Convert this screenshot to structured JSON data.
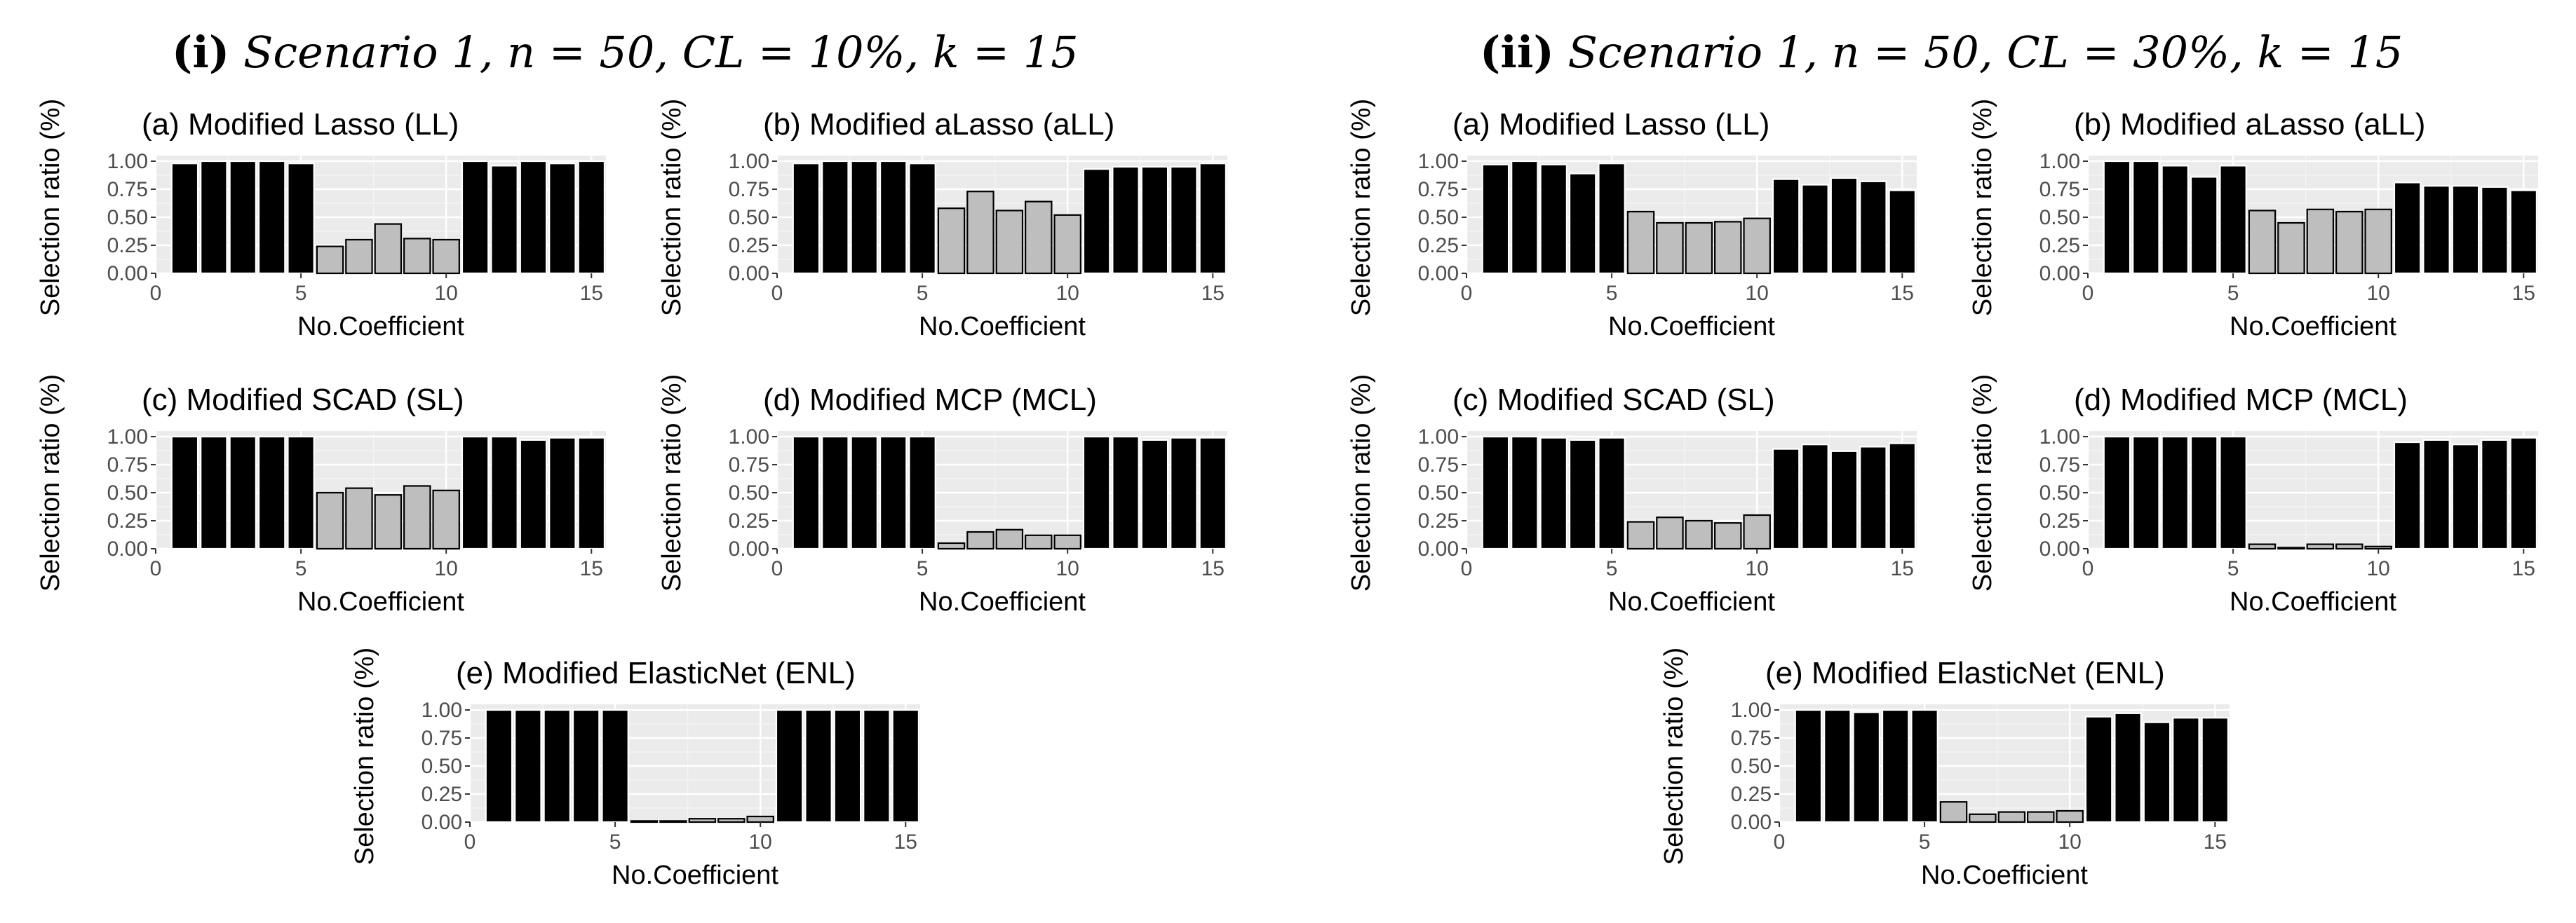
{
  "figure": {
    "scenarios": [
      {
        "numeral": "(i)",
        "text": "Scenario 1, n = 50, CL = 10%, k = 15"
      },
      {
        "numeral": "(ii)",
        "text": "Scenario 1, n = 50, CL = 30%, k = 15"
      }
    ]
  },
  "chart_data": [
    {
      "type": "bar",
      "scenario": "(i)",
      "title": "(a) Modified Lasso (LL)",
      "xlabel": "No.Coefficient",
      "ylabel": "Selection ratio (%)",
      "xlim": [
        0,
        15.5
      ],
      "ylim": [
        0,
        1.05
      ],
      "xticks": [
        0,
        5,
        10,
        15
      ],
      "yticks": [
        0.0,
        0.25,
        0.5,
        0.75,
        1.0
      ],
      "ytick_labels": [
        "0.00",
        "0.25",
        "0.50",
        "0.75",
        "1.00"
      ],
      "x": [
        1,
        2,
        3,
        4,
        5,
        6,
        7,
        8,
        9,
        10,
        11,
        12,
        13,
        14,
        15
      ],
      "values": [
        0.98,
        1.0,
        1.0,
        1.0,
        0.98,
        0.24,
        0.3,
        0.44,
        0.31,
        0.3,
        1.0,
        0.96,
        1.0,
        0.98,
        1.0
      ],
      "fills": [
        "#000000",
        "#000000",
        "#000000",
        "#000000",
        "#000000",
        "#bebebe",
        "#bebebe",
        "#bebebe",
        "#bebebe",
        "#bebebe",
        "#000000",
        "#000000",
        "#000000",
        "#000000",
        "#000000"
      ],
      "grid": true
    },
    {
      "type": "bar",
      "scenario": "(i)",
      "title": "(b) Modified aLasso (aLL)",
      "xlabel": "No.Coefficient",
      "ylabel": "Selection ratio (%)",
      "xlim": [
        0,
        15.5
      ],
      "ylim": [
        0,
        1.05
      ],
      "xticks": [
        0,
        5,
        10,
        15
      ],
      "yticks": [
        0.0,
        0.25,
        0.5,
        0.75,
        1.0
      ],
      "ytick_labels": [
        "0.00",
        "0.25",
        "0.50",
        "0.75",
        "1.00"
      ],
      "x": [
        1,
        2,
        3,
        4,
        5,
        6,
        7,
        8,
        9,
        10,
        11,
        12,
        13,
        14,
        15
      ],
      "values": [
        0.98,
        1.0,
        1.0,
        1.0,
        0.98,
        0.58,
        0.73,
        0.56,
        0.64,
        0.52,
        0.93,
        0.95,
        0.95,
        0.95,
        0.98
      ],
      "fills": [
        "#000000",
        "#000000",
        "#000000",
        "#000000",
        "#000000",
        "#bebebe",
        "#bebebe",
        "#bebebe",
        "#bebebe",
        "#bebebe",
        "#000000",
        "#000000",
        "#000000",
        "#000000",
        "#000000"
      ],
      "grid": true
    },
    {
      "type": "bar",
      "scenario": "(i)",
      "title": "(c) Modified SCAD (SL)",
      "xlabel": "No.Coefficient",
      "ylabel": "Selection ratio (%)",
      "xlim": [
        0,
        15.5
      ],
      "ylim": [
        0,
        1.05
      ],
      "xticks": [
        0,
        5,
        10,
        15
      ],
      "yticks": [
        0.0,
        0.25,
        0.5,
        0.75,
        1.0
      ],
      "ytick_labels": [
        "0.00",
        "0.25",
        "0.50",
        "0.75",
        "1.00"
      ],
      "x": [
        1,
        2,
        3,
        4,
        5,
        6,
        7,
        8,
        9,
        10,
        11,
        12,
        13,
        14,
        15
      ],
      "values": [
        1.0,
        1.0,
        1.0,
        1.0,
        1.0,
        0.5,
        0.54,
        0.48,
        0.56,
        0.52,
        1.0,
        1.0,
        0.97,
        0.99,
        0.99
      ],
      "fills": [
        "#000000",
        "#000000",
        "#000000",
        "#000000",
        "#000000",
        "#bebebe",
        "#bebebe",
        "#bebebe",
        "#bebebe",
        "#bebebe",
        "#000000",
        "#000000",
        "#000000",
        "#000000",
        "#000000"
      ],
      "grid": true
    },
    {
      "type": "bar",
      "scenario": "(i)",
      "title": "(d) Modified MCP (MCL)",
      "xlabel": "No.Coefficient",
      "ylabel": "Selection ratio (%)",
      "xlim": [
        0,
        15.5
      ],
      "ylim": [
        0,
        1.05
      ],
      "xticks": [
        0,
        5,
        10,
        15
      ],
      "yticks": [
        0.0,
        0.25,
        0.5,
        0.75,
        1.0
      ],
      "ytick_labels": [
        "0.00",
        "0.25",
        "0.50",
        "0.75",
        "1.00"
      ],
      "x": [
        1,
        2,
        3,
        4,
        5,
        6,
        7,
        8,
        9,
        10,
        11,
        12,
        13,
        14,
        15
      ],
      "values": [
        1.0,
        1.0,
        1.0,
        1.0,
        1.0,
        0.05,
        0.15,
        0.17,
        0.12,
        0.12,
        1.0,
        1.0,
        0.97,
        0.99,
        0.99
      ],
      "fills": [
        "#000000",
        "#000000",
        "#000000",
        "#000000",
        "#000000",
        "#bebebe",
        "#bebebe",
        "#bebebe",
        "#bebebe",
        "#bebebe",
        "#000000",
        "#000000",
        "#000000",
        "#000000",
        "#000000"
      ],
      "grid": true
    },
    {
      "type": "bar",
      "scenario": "(i)",
      "title": "(e) Modified ElasticNet (ENL)",
      "xlabel": "No.Coefficient",
      "ylabel": "Selection ratio (%)",
      "xlim": [
        0,
        15.5
      ],
      "ylim": [
        0,
        1.05
      ],
      "xticks": [
        0,
        5,
        10,
        15
      ],
      "yticks": [
        0.0,
        0.25,
        0.5,
        0.75,
        1.0
      ],
      "ytick_labels": [
        "0.00",
        "0.25",
        "0.50",
        "0.75",
        "1.00"
      ],
      "x": [
        1,
        2,
        3,
        4,
        5,
        6,
        7,
        8,
        9,
        10,
        11,
        12,
        13,
        14,
        15
      ],
      "values": [
        1.0,
        1.0,
        1.0,
        1.0,
        1.0,
        0.01,
        0.01,
        0.03,
        0.03,
        0.05,
        1.0,
        1.0,
        1.0,
        1.0,
        1.0
      ],
      "fills": [
        "#000000",
        "#000000",
        "#000000",
        "#000000",
        "#000000",
        "#bebebe",
        "#bebebe",
        "#bebebe",
        "#bebebe",
        "#bebebe",
        "#000000",
        "#000000",
        "#000000",
        "#000000",
        "#000000"
      ],
      "grid": true
    },
    {
      "type": "bar",
      "scenario": "(ii)",
      "title": "(a) Modified Lasso (LL)",
      "xlabel": "No.Coefficient",
      "ylabel": "Selection ratio (%)",
      "xlim": [
        0,
        15.5
      ],
      "ylim": [
        0,
        1.05
      ],
      "xticks": [
        0,
        5,
        10,
        15
      ],
      "yticks": [
        0.0,
        0.25,
        0.5,
        0.75,
        1.0
      ],
      "ytick_labels": [
        "0.00",
        "0.25",
        "0.50",
        "0.75",
        "1.00"
      ],
      "x": [
        1,
        2,
        3,
        4,
        5,
        6,
        7,
        8,
        9,
        10,
        11,
        12,
        13,
        14,
        15
      ],
      "values": [
        0.97,
        1.0,
        0.97,
        0.89,
        0.98,
        0.55,
        0.45,
        0.45,
        0.46,
        0.49,
        0.84,
        0.79,
        0.85,
        0.82,
        0.74
      ],
      "fills": [
        "#000000",
        "#000000",
        "#000000",
        "#000000",
        "#000000",
        "#bebebe",
        "#bebebe",
        "#bebebe",
        "#bebebe",
        "#bebebe",
        "#000000",
        "#000000",
        "#000000",
        "#000000",
        "#000000"
      ],
      "grid": true
    },
    {
      "type": "bar",
      "scenario": "(ii)",
      "title": "(b) Modified aLasso (aLL)",
      "xlabel": "No.Coefficient",
      "ylabel": "Selection ratio (%)",
      "xlim": [
        0,
        15.5
      ],
      "ylim": [
        0,
        1.05
      ],
      "xticks": [
        0,
        5,
        10,
        15
      ],
      "yticks": [
        0.0,
        0.25,
        0.5,
        0.75,
        1.0
      ],
      "ytick_labels": [
        "0.00",
        "0.25",
        "0.50",
        "0.75",
        "1.00"
      ],
      "x": [
        1,
        2,
        3,
        4,
        5,
        6,
        7,
        8,
        9,
        10,
        11,
        12,
        13,
        14,
        15
      ],
      "values": [
        1.0,
        1.0,
        0.96,
        0.86,
        0.96,
        0.56,
        0.45,
        0.57,
        0.55,
        0.57,
        0.81,
        0.78,
        0.78,
        0.77,
        0.74
      ],
      "fills": [
        "#000000",
        "#000000",
        "#000000",
        "#000000",
        "#000000",
        "#bebebe",
        "#bebebe",
        "#bebebe",
        "#bebebe",
        "#bebebe",
        "#000000",
        "#000000",
        "#000000",
        "#000000",
        "#000000"
      ],
      "grid": true
    },
    {
      "type": "bar",
      "scenario": "(ii)",
      "title": "(c) Modified SCAD (SL)",
      "xlabel": "No.Coefficient",
      "ylabel": "Selection ratio (%)",
      "xlim": [
        0,
        15.5
      ],
      "ylim": [
        0,
        1.05
      ],
      "xticks": [
        0,
        5,
        10,
        15
      ],
      "yticks": [
        0.0,
        0.25,
        0.5,
        0.75,
        1.0
      ],
      "ytick_labels": [
        "0.00",
        "0.25",
        "0.50",
        "0.75",
        "1.00"
      ],
      "x": [
        1,
        2,
        3,
        4,
        5,
        6,
        7,
        8,
        9,
        10,
        11,
        12,
        13,
        14,
        15
      ],
      "values": [
        1.0,
        1.0,
        0.99,
        0.97,
        0.99,
        0.24,
        0.28,
        0.25,
        0.23,
        0.3,
        0.89,
        0.93,
        0.87,
        0.91,
        0.94
      ],
      "fills": [
        "#000000",
        "#000000",
        "#000000",
        "#000000",
        "#000000",
        "#bebebe",
        "#bebebe",
        "#bebebe",
        "#bebebe",
        "#bebebe",
        "#000000",
        "#000000",
        "#000000",
        "#000000",
        "#000000"
      ],
      "grid": true
    },
    {
      "type": "bar",
      "scenario": "(ii)",
      "title": "(d) Modified MCP (MCL)",
      "xlabel": "No.Coefficient",
      "ylabel": "Selection ratio (%)",
      "xlim": [
        0,
        15.5
      ],
      "ylim": [
        0,
        1.05
      ],
      "xticks": [
        0,
        5,
        10,
        15
      ],
      "yticks": [
        0.0,
        0.25,
        0.5,
        0.75,
        1.0
      ],
      "ytick_labels": [
        "0.00",
        "0.25",
        "0.50",
        "0.75",
        "1.00"
      ],
      "x": [
        1,
        2,
        3,
        4,
        5,
        6,
        7,
        8,
        9,
        10,
        11,
        12,
        13,
        14,
        15
      ],
      "values": [
        1.0,
        1.0,
        1.0,
        1.0,
        1.0,
        0.04,
        0.01,
        0.04,
        0.04,
        0.02,
        0.95,
        0.97,
        0.93,
        0.97,
        0.99
      ],
      "fills": [
        "#000000",
        "#000000",
        "#000000",
        "#000000",
        "#000000",
        "#bebebe",
        "#bebebe",
        "#bebebe",
        "#bebebe",
        "#bebebe",
        "#000000",
        "#000000",
        "#000000",
        "#000000",
        "#000000"
      ],
      "grid": true
    },
    {
      "type": "bar",
      "scenario": "(ii)",
      "title": "(e) Modified ElasticNet (ENL)",
      "xlabel": "No.Coefficient",
      "ylabel": "Selection ratio (%)",
      "xlim": [
        0,
        15.5
      ],
      "ylim": [
        0,
        1.05
      ],
      "xticks": [
        0,
        5,
        10,
        15
      ],
      "yticks": [
        0.0,
        0.25,
        0.5,
        0.75,
        1.0
      ],
      "ytick_labels": [
        "0.00",
        "0.25",
        "0.50",
        "0.75",
        "1.00"
      ],
      "x": [
        1,
        2,
        3,
        4,
        5,
        6,
        7,
        8,
        9,
        10,
        11,
        12,
        13,
        14,
        15
      ],
      "values": [
        1.0,
        1.0,
        0.98,
        1.0,
        1.0,
        0.18,
        0.07,
        0.09,
        0.09,
        0.1,
        0.94,
        0.97,
        0.89,
        0.93,
        0.93
      ],
      "fills": [
        "#000000",
        "#000000",
        "#000000",
        "#000000",
        "#000000",
        "#bebebe",
        "#bebebe",
        "#bebebe",
        "#bebebe",
        "#bebebe",
        "#000000",
        "#000000",
        "#000000",
        "#000000",
        "#000000"
      ],
      "grid": true
    }
  ]
}
